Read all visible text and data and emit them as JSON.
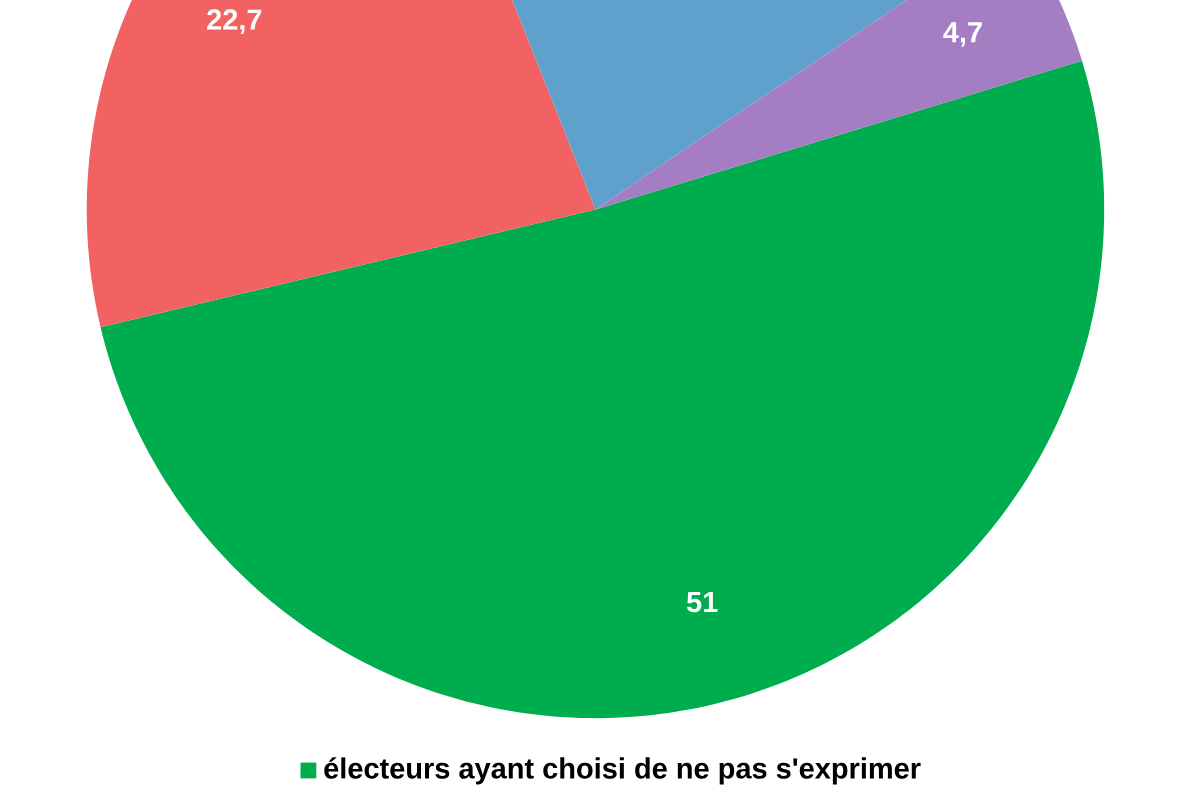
{
  "chart_data": {
    "type": "pie",
    "categories": [
      "électeurs ayant choisi de ne pas s'exprimer",
      null,
      null,
      null
    ],
    "values": [
      51,
      22.7,
      21.6,
      4.7
    ],
    "colors": [
      "#00ad4e",
      "#f26262",
      "#60a0cc",
      "#a47dc3"
    ],
    "value_labels": [
      "51",
      "22,7",
      null,
      "4,7"
    ],
    "legend": "bottom"
  }
}
